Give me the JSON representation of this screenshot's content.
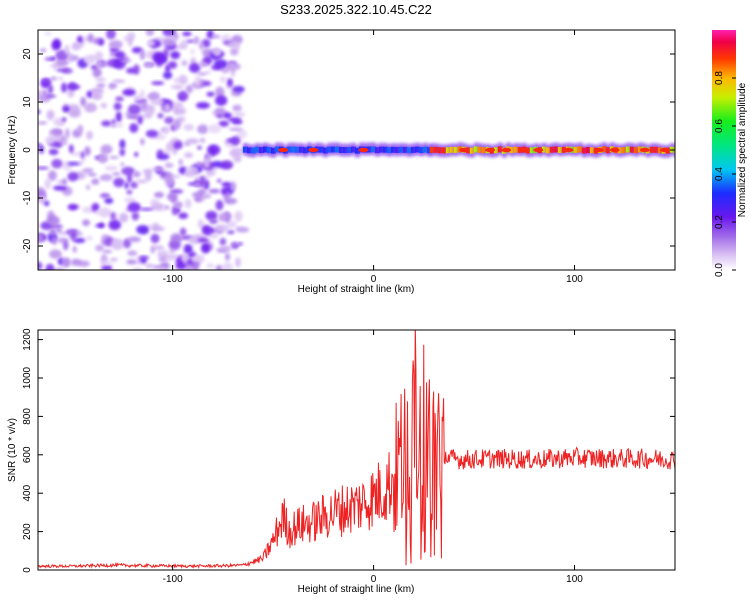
{
  "title": "S233.2025.322.10.45.C22",
  "colors": {
    "snr_line": "#ee2222",
    "background": "#ffffff"
  },
  "chart_data": [
    {
      "type": "heatmap",
      "name": "spectrogram",
      "xlabel": "Height of straight line (km)",
      "ylabel": "Frequency (Hz)",
      "xlim": [
        -167,
        150
      ],
      "ylim": [
        -25,
        25
      ],
      "xticks": [
        -100,
        0,
        100
      ],
      "xtick_labels": [
        "-100",
        "0",
        "100"
      ],
      "yticks": [
        20,
        10,
        0,
        -10,
        -20
      ],
      "ytick_labels": [
        "20",
        "10",
        "0",
        "-10",
        "-20"
      ],
      "colorbar": {
        "label": "Normalized spectral amplitude",
        "range": [
          0,
          1
        ],
        "ticks": [
          0.0,
          0.2,
          0.4,
          0.6,
          0.8
        ],
        "tick_labels": [
          "0.0",
          "0.2",
          "0.4",
          "0.6",
          "0.8"
        ]
      },
      "noise_region_x": [
        -167,
        -65
      ],
      "signal_band_freq_hz": 0,
      "signal_band_segments": [
        {
          "x": [
            -65,
            28
          ],
          "amplitude": 0.35
        },
        {
          "x": [
            28,
            150
          ],
          "amplitude": 0.9
        }
      ],
      "signal_band_peak_centers_km": [
        -45,
        -30,
        -5,
        45,
        58,
        66,
        75,
        82,
        97,
        112,
        120,
        135,
        145
      ]
    },
    {
      "type": "line",
      "name": "snr",
      "xlabel": "Height of straight line (km)",
      "ylabel": "SNR (10 * v/v)",
      "xlim": [
        -167,
        150
      ],
      "ylim": [
        0,
        1250
      ],
      "xticks": [
        -100,
        0,
        100
      ],
      "xtick_labels": [
        "-100",
        "0",
        "100"
      ],
      "yticks": [
        0,
        200,
        400,
        600,
        800,
        1000,
        1200
      ],
      "ytick_labels": [
        "0",
        "200",
        "400",
        "600",
        "800",
        "1000",
        "1200"
      ],
      "series": [
        {
          "name": "SNR",
          "x": [
            -167,
            -150,
            -130,
            -110,
            -90,
            -75,
            -65,
            -55,
            -50,
            -45,
            -42,
            -38,
            -30,
            -20,
            -10,
            -5,
            0,
            5,
            10,
            15,
            18,
            20,
            22,
            25,
            28,
            30,
            33,
            37,
            45,
            60,
            80,
            100,
            120,
            140,
            150
          ],
          "y": [
            20,
            20,
            25,
            22,
            20,
            22,
            25,
            60,
            150,
            280,
            200,
            230,
            250,
            300,
            330,
            350,
            380,
            420,
            480,
            600,
            500,
            800,
            650,
            700,
            650,
            550,
            650,
            580,
            575,
            580,
            575,
            585,
            580,
            580,
            575
          ]
        }
      ]
    }
  ]
}
